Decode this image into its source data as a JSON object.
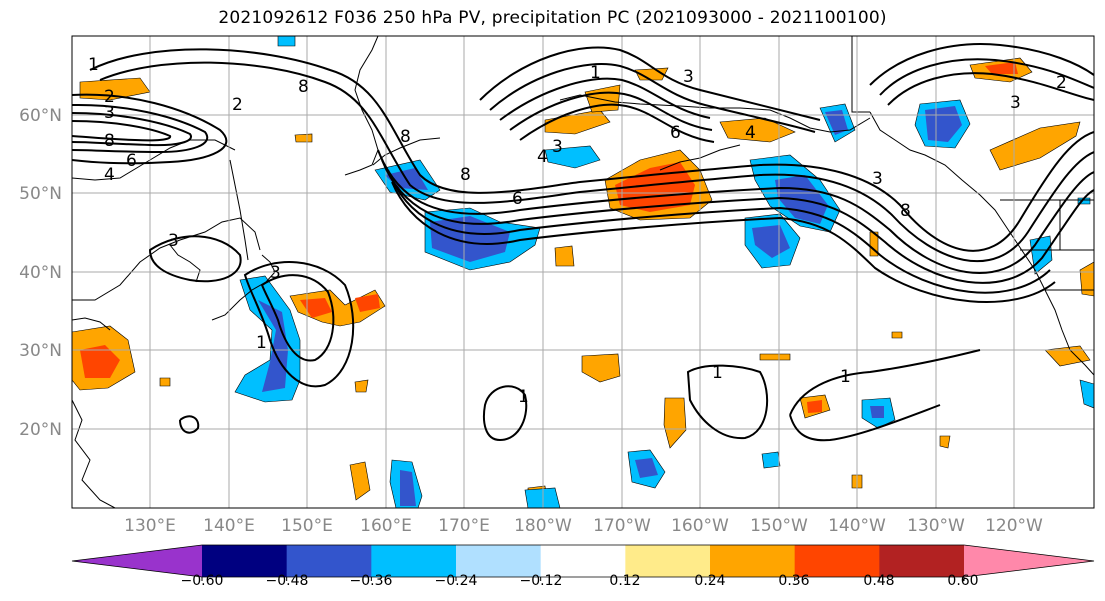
{
  "title": "2021092612 F036 250 hPa PV, precipitation PC (2021093000 - 2021100100)",
  "latitude_labels": [
    "60°N",
    "50°N",
    "40°N",
    "30°N",
    "20°N"
  ],
  "longitude_labels": [
    "130°E",
    "140°E",
    "150°E",
    "160°E",
    "170°E",
    "180°W",
    "170°W",
    "160°W",
    "150°W",
    "140°W",
    "130°W",
    "120°W"
  ],
  "colorbar": {
    "ticks": [
      "−0.60",
      "−0.48",
      "−0.36",
      "−0.24",
      "−0.12",
      "0.12",
      "0.24",
      "0.36",
      "0.48",
      "0.60"
    ],
    "colors": [
      "#9933cc",
      "#000080",
      "#3355cc",
      "#00bfff",
      "#b0e0ff",
      "#ffffff",
      "#ffeb8a",
      "#ffa500",
      "#ff4500",
      "#b22222",
      "#ff88aa"
    ]
  },
  "contour_labels": [
    "1",
    "2",
    "3",
    "8",
    "6",
    "4",
    "2",
    "8",
    "3",
    "3",
    "8",
    "6",
    "1",
    "8",
    "4",
    "3",
    "6",
    "4",
    "3",
    "1",
    "8",
    "3",
    "2",
    "3",
    "1",
    "1",
    "1"
  ],
  "colors": {
    "contour": "#000000",
    "grid": "#aaaaaa",
    "label": "#888888"
  }
}
